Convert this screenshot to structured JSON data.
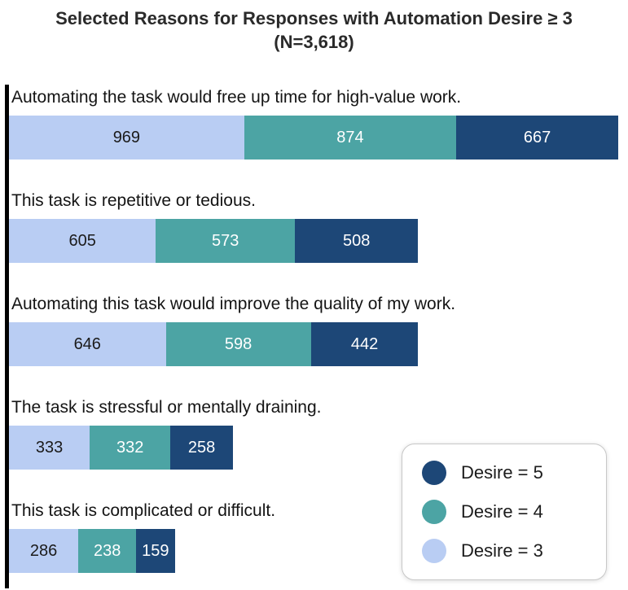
{
  "chart_data": {
    "type": "bar",
    "orientation": "horizontal",
    "stacked": true,
    "title": "Selected Reasons for Responses with Automation Desire ≥ 3",
    "subtitle": "(N=3,618)",
    "x_max": 2510,
    "grid": false,
    "categories": [
      "Automating the task would free up time for high-value work.",
      "This task is repetitive or tedious.",
      "Automating this task would improve the quality of my work.",
      "The task is stressful or mentally draining.",
      "This task is complicated or difficult."
    ],
    "series": [
      {
        "name": "Desire = 3",
        "color": "#b9cdf3",
        "text_color": "#1b1b1b",
        "values": [
          969,
          605,
          646,
          333,
          286
        ]
      },
      {
        "name": "Desire = 4",
        "color": "#4ca4a4",
        "text_color": "#ffffff",
        "values": [
          874,
          573,
          598,
          332,
          238
        ]
      },
      {
        "name": "Desire = 5",
        "color": "#1d4777",
        "text_color": "#ffffff",
        "values": [
          667,
          508,
          442,
          258,
          159
        ]
      }
    ],
    "category_totals": [
      2510,
      1686,
      1686,
      923,
      683
    ],
    "legend": {
      "position": "bottom-right",
      "items": [
        {
          "label": "Desire = 5",
          "color": "#1d4777"
        },
        {
          "label": "Desire = 4",
          "color": "#4ca4a4"
        },
        {
          "label": "Desire = 3",
          "color": "#b9cdf3"
        }
      ]
    }
  }
}
